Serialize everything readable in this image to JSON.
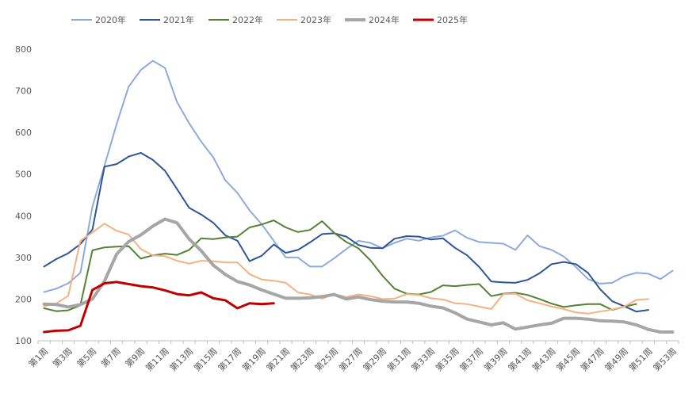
{
  "chart_data": {
    "type": "line",
    "title": "",
    "xlabel": "",
    "ylabel": "",
    "ylim": [
      100,
      800
    ],
    "yticks": [
      100,
      200,
      300,
      400,
      500,
      600,
      700,
      800
    ],
    "grid": false,
    "legend_position": "top",
    "x": [
      "第1周",
      "第2周",
      "第3周",
      "第4周",
      "第5周",
      "第6周",
      "第7周",
      "第8周",
      "第9周",
      "第10周",
      "第11周",
      "第12周",
      "第13周",
      "第14周",
      "第15周",
      "第16周",
      "第17周",
      "第18周",
      "第19周",
      "第20周",
      "第21周",
      "第22周",
      "第23周",
      "第24周",
      "第25周",
      "第26周",
      "第27周",
      "第28周",
      "第29周",
      "第30周",
      "第31周",
      "第32周",
      "第33周",
      "第34周",
      "第35周",
      "第36周",
      "第37周",
      "第38周",
      "第39周",
      "第40周",
      "第41周",
      "第42周",
      "第43周",
      "第44周",
      "第45周",
      "第46周",
      "第47周",
      "第48周",
      "第49周",
      "第50周",
      "第51周",
      "第52周",
      "第53周"
    ],
    "xtick_labels": [
      "第1周",
      "第3周",
      "第5周",
      "第7周",
      "第9周",
      "第11周",
      "第13周",
      "第15周",
      "第17周",
      "第19周",
      "第21周",
      "第23周",
      "第25周",
      "第27周",
      "第29周",
      "第31周",
      "第33周",
      "第35周",
      "第37周",
      "第39周",
      "第41周",
      "第43周",
      "第45周",
      "第47周",
      "第49周",
      "第51周",
      "第53周"
    ],
    "series": [
      {
        "name": "2020年",
        "color": "#8eaadb",
        "width": 2,
        "values": [
          217,
          225,
          238,
          263,
          422,
          520,
          620,
          710,
          750,
          772,
          755,
          673,
          622,
          578,
          540,
          485,
          455,
          413,
          380,
          340,
          300,
          300,
          278,
          278,
          298,
          320,
          340,
          335,
          322,
          335,
          345,
          340,
          348,
          352,
          365,
          347,
          337,
          335,
          333,
          318,
          353,
          327,
          318,
          302,
          277,
          248,
          237,
          239,
          255,
          263,
          261,
          248,
          268
        ]
      },
      {
        "name": "2021年",
        "color": "#2f5597",
        "width": 2,
        "values": [
          278,
          296,
          310,
          332,
          367,
          518,
          524,
          542,
          551,
          534,
          508,
          464,
          419,
          403,
          383,
          353,
          340,
          291,
          304,
          331,
          311,
          318,
          336,
          356,
          358,
          350,
          330,
          323,
          322,
          345,
          351,
          350,
          343,
          346,
          323,
          305,
          277,
          242,
          240,
          239,
          246,
          262,
          284,
          289,
          284,
          263,
          224,
          195,
          183,
          170,
          174,
          null,
          null
        ]
      },
      {
        "name": "2022年",
        "color": "#548235",
        "width": 2,
        "values": [
          178,
          171,
          173,
          185,
          317,
          324,
          326,
          327,
          297,
          305,
          309,
          306,
          318,
          346,
          344,
          348,
          350,
          372,
          379,
          389,
          372,
          361,
          366,
          387,
          359,
          337,
          322,
          293,
          256,
          225,
          213,
          211,
          217,
          233,
          231,
          234,
          236,
          207,
          213,
          215,
          210,
          200,
          189,
          181,
          185,
          188,
          188,
          174,
          182,
          188,
          null,
          null,
          null
        ]
      },
      {
        "name": "2023年",
        "color": "#f4b183",
        "width": 2,
        "values": [
          183,
          189,
          208,
          340,
          360,
          381,
          364,
          355,
          320,
          305,
          303,
          292,
          285,
          292,
          291,
          288,
          288,
          260,
          247,
          244,
          239,
          216,
          211,
          201,
          212,
          205,
          211,
          207,
          200,
          201,
          212,
          210,
          202,
          199,
          190,
          188,
          182,
          176,
          212,
          213,
          197,
          190,
          182,
          176,
          168,
          165,
          170,
          175,
          182,
          198,
          200,
          null,
          null
        ]
      },
      {
        "name": "2024年",
        "color": "#a6a6a6",
        "width": 4,
        "values": [
          188,
          187,
          181,
          187,
          200,
          243,
          308,
          338,
          354,
          375,
          392,
          383,
          344,
          316,
          281,
          259,
          242,
          234,
          222,
          212,
          202,
          202,
          203,
          206,
          211,
          200,
          205,
          199,
          195,
          193,
          193,
          190,
          183,
          179,
          167,
          152,
          145,
          138,
          143,
          128,
          133,
          138,
          142,
          154,
          154,
          152,
          148,
          147,
          145,
          138,
          127,
          121,
          121
        ]
      },
      {
        "name": "2025年",
        "color": "#c00000",
        "width": 3,
        "values": [
          121,
          124,
          125,
          136,
          222,
          238,
          241,
          236,
          231,
          228,
          221,
          212,
          209,
          216,
          202,
          197,
          178,
          190,
          188,
          190,
          null,
          null,
          null,
          null,
          null,
          null,
          null,
          null,
          null,
          null,
          null,
          null,
          null,
          null,
          null,
          null,
          null,
          null,
          null,
          null,
          null,
          null,
          null,
          null,
          null,
          null,
          null,
          null,
          null,
          null,
          null,
          null,
          null
        ]
      }
    ]
  }
}
